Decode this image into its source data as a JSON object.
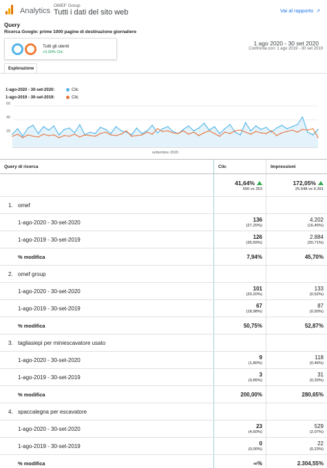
{
  "header": {
    "brand": "Analytics",
    "org": "OMEF Group",
    "view": "Tutti i dati del sito web",
    "report_link": "Vai al rapporto",
    "link_icon": "external-link-icon"
  },
  "page": {
    "title": "Query",
    "subtitle": "Ricerca Google: prime 1000 pagine di destinazione giornaliere"
  },
  "segment": {
    "label": "Tutti gli utenti",
    "change": "+0,00% Clic",
    "colors": [
      "#4fb3e8",
      "#f07a32"
    ]
  },
  "dates": {
    "main": "1 ago 2020 - 30 set 2020",
    "compare": "Confronta con: 1 ago 2019 - 30 set 2019"
  },
  "tab": {
    "label": "Esplorazione"
  },
  "legend": [
    {
      "period": "1-ago-2020 - 30-set-2020:",
      "metric": "Clic",
      "color": "#4fb3e8"
    },
    {
      "period": "1-ago-2019 - 30-set-2019:",
      "metric": "Clic",
      "color": "#e8733a"
    }
  ],
  "chart_data": {
    "type": "area",
    "title": "",
    "xlabel": "settembre 2020",
    "ylabel": "",
    "ylim": [
      0,
      60
    ],
    "yticks": [
      "60",
      "40",
      "20"
    ],
    "x_tick_label": "settembre 2020",
    "series": [
      {
        "name": "1-ago-2020 - 30-set-2020",
        "color": "#4fb3e8",
        "values": [
          19,
          27,
          16,
          28,
          32,
          20,
          30,
          25,
          31,
          18,
          26,
          28,
          21,
          33,
          18,
          22,
          20,
          29,
          26,
          20,
          30,
          24,
          22,
          18,
          28,
          20,
          24,
          32,
          21,
          27,
          30,
          23,
          20,
          26,
          31,
          24,
          28,
          35,
          25,
          30,
          20,
          27,
          33,
          22,
          18,
          36,
          24,
          31,
          26,
          29,
          22,
          28,
          32,
          27,
          30,
          33,
          44,
          22,
          18,
          26
        ]
      },
      {
        "name": "1-ago-2019 - 30-set-2019",
        "color": "#e8733a",
        "values": [
          16,
          19,
          14,
          18,
          16,
          15,
          19,
          17,
          18,
          14,
          17,
          16,
          19,
          15,
          18,
          17,
          16,
          20,
          22,
          18,
          17,
          19,
          24,
          16,
          17,
          18,
          22,
          19,
          27,
          23,
          24,
          21,
          20,
          24,
          19,
          22,
          17,
          21,
          24,
          20,
          16,
          22,
          20,
          24,
          25,
          22,
          19,
          23,
          21,
          20,
          24,
          17,
          21,
          23,
          25,
          22,
          26,
          25,
          27,
          14
        ]
      }
    ]
  },
  "table": {
    "headers": {
      "query": "Query di ricerca",
      "clicks": "Clic",
      "impressions": "Impressioni"
    },
    "totals": {
      "clicks_pct": "41,64%",
      "clicks_cmp": "500 vs 353",
      "impr_pct": "172,05%",
      "impr_cmp": "25.548 vs 9.391"
    },
    "groups": [
      {
        "index": "1.",
        "query": "omef",
        "rows": [
          {
            "label": "1-ago-2020 - 30-set-2020",
            "clicks": "136",
            "clicks_share": "(27,20%)",
            "impr": "4.202",
            "impr_share": "(16,45%)"
          },
          {
            "label": "1-ago-2019 - 30-set-2019",
            "clicks": "126",
            "clicks_share": "(35,69%)",
            "impr": "2.884",
            "impr_share": "(30,71%)"
          }
        ],
        "change_label": "% modifica",
        "clicks_change": "7,94%",
        "impr_change": "45,70%"
      },
      {
        "index": "2.",
        "query": "omef group",
        "rows": [
          {
            "label": "1-ago-2020 - 30-set-2020",
            "clicks": "101",
            "clicks_share": "(20,20%)",
            "impr": "133",
            "impr_share": "(0,52%)"
          },
          {
            "label": "1-ago-2019 - 30-set-2019",
            "clicks": "67",
            "clicks_share": "(18,98%)",
            "impr": "87",
            "impr_share": "(0,93%)"
          }
        ],
        "change_label": "% modifica",
        "clicks_change": "50,75%",
        "impr_change": "52,87%"
      },
      {
        "index": "3.",
        "query": "tagliasiepi per miniescavatore usato",
        "rows": [
          {
            "label": "1-ago-2020 - 30-set-2020",
            "clicks": "9",
            "clicks_share": "(1,80%)",
            "impr": "118",
            "impr_share": "(0,46%)"
          },
          {
            "label": "1-ago-2019 - 30-set-2019",
            "clicks": "3",
            "clicks_share": "(0,85%)",
            "impr": "31",
            "impr_share": "(0,33%)"
          }
        ],
        "change_label": "% modifica",
        "clicks_change": "200,00%",
        "impr_change": "280,65%"
      },
      {
        "index": "4.",
        "query": "spaccalegna per escavatore",
        "rows": [
          {
            "label": "1-ago-2020 - 30-set-2020",
            "clicks": "23",
            "clicks_share": "(4,60%)",
            "impr": "529",
            "impr_share": "(2,07%)"
          },
          {
            "label": "1-ago-2019 - 30-set-2019",
            "clicks": "0",
            "clicks_share": "(0,00%)",
            "impr": "22",
            "impr_share": "(0,23%)"
          }
        ],
        "change_label": "% modifica",
        "clicks_change": "∞%",
        "impr_change": "2.304,55%"
      }
    ]
  }
}
